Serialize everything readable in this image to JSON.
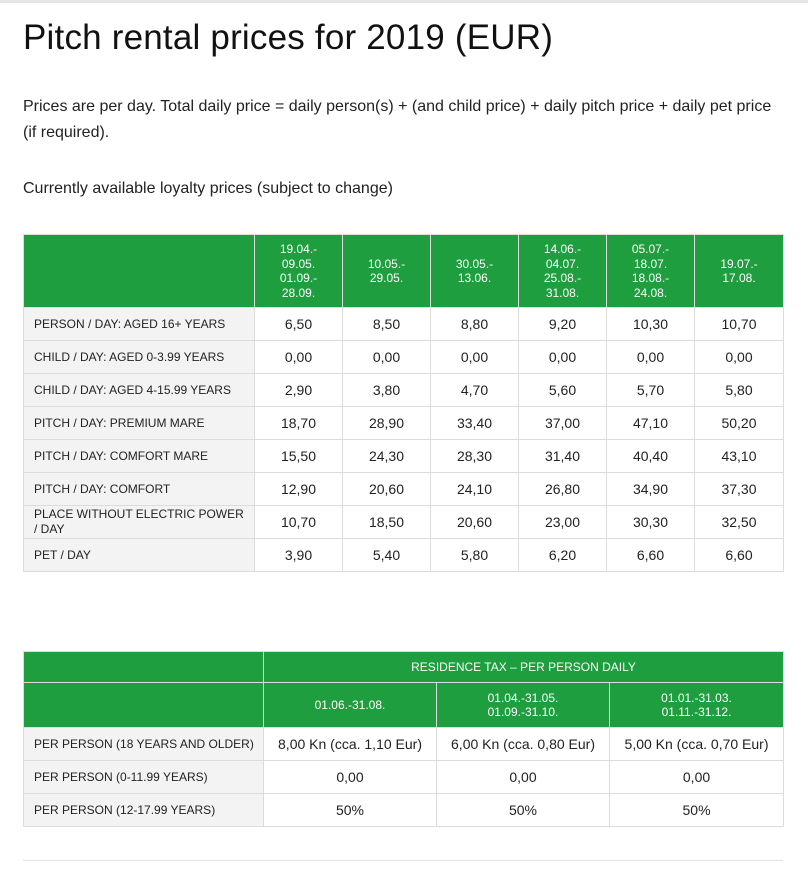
{
  "page": {
    "title": "Pitch rental prices for 2019 (EUR)",
    "intro": "Prices are per day. Total daily price = daily person(s) + (and child price) + daily pitch price + daily pet price (if required).",
    "loyalty_note": "Currently available loyalty prices (subject to change)"
  },
  "prices_table": {
    "periods": [
      [
        "19.04.-",
        "09.05.",
        "01.09.-",
        "28.09."
      ],
      [
        "10.05.-",
        "29.05."
      ],
      [
        "30.05.-",
        "13.06."
      ],
      [
        "14.06.-",
        "04.07.",
        "25.08.-",
        "31.08."
      ],
      [
        "05.07.-",
        "18.07.",
        "18.08.-",
        "24.08."
      ],
      [
        "19.07.-",
        "17.08."
      ]
    ],
    "rows": [
      {
        "label": "PERSON / DAY: AGED 16+ YEARS",
        "values": [
          "6,50",
          "8,50",
          "8,80",
          "9,20",
          "10,30",
          "10,70"
        ]
      },
      {
        "label": "CHILD / DAY: AGED 0-3.99 YEARS",
        "values": [
          "0,00",
          "0,00",
          "0,00",
          "0,00",
          "0,00",
          "0,00"
        ]
      },
      {
        "label": "CHILD / DAY: AGED 4-15.99 YEARS",
        "values": [
          "2,90",
          "3,80",
          "4,70",
          "5,60",
          "5,70",
          "5,80"
        ]
      },
      {
        "label": "PITCH / DAY: PREMIUM MARE",
        "values": [
          "18,70",
          "28,90",
          "33,40",
          "37,00",
          "47,10",
          "50,20"
        ]
      },
      {
        "label": "PITCH / DAY: COMFORT MARE",
        "values": [
          "15,50",
          "24,30",
          "28,30",
          "31,40",
          "40,40",
          "43,10"
        ]
      },
      {
        "label": "PITCH / DAY: COMFORT",
        "values": [
          "12,90",
          "20,60",
          "24,10",
          "26,80",
          "34,90",
          "37,30"
        ]
      },
      {
        "label": "PLACE WITHOUT ELECTRIC POWER / DAY",
        "values": [
          "10,70",
          "18,50",
          "20,60",
          "23,00",
          "30,30",
          "32,50"
        ]
      },
      {
        "label": "PET / DAY",
        "values": [
          "3,90",
          "5,40",
          "5,80",
          "6,20",
          "6,60",
          "6,60"
        ]
      }
    ]
  },
  "tax_table": {
    "title": "RESIDENCE TAX – PER PERSON DAILY",
    "periods": [
      [
        "01.06.-31.08."
      ],
      [
        "01.04.-31.05.",
        "01.09.-31.10."
      ],
      [
        "01.01.-31.03.",
        "01.11.-31.12."
      ]
    ],
    "rows": [
      {
        "label": "PER PERSON (18 YEARS AND OLDER)",
        "values": [
          "8,00 Kn (cca. 1,10 Eur)",
          "6,00 Kn (cca. 0,80 Eur)",
          "5,00 Kn (cca. 0,70 Eur)"
        ]
      },
      {
        "label": "PER PERSON (0-11.99 YEARS)",
        "values": [
          "0,00",
          "0,00",
          "0,00"
        ]
      },
      {
        "label": "PER PERSON (12-17.99 YEARS)",
        "values": [
          "50%",
          "50%",
          "50%"
        ]
      }
    ]
  }
}
